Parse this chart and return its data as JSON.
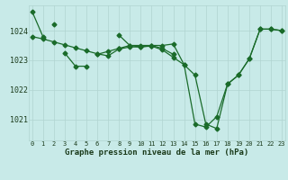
{
  "title": "Graphe pression niveau de la mer (hPa)",
  "background_color": "#c8eae8",
  "grid_color": "#b0d4d0",
  "line_color": "#1a6b2a",
  "series": [
    [
      1024.65,
      1023.8,
      null,
      1023.25,
      1022.8,
      1022.8,
      null,
      null,
      1023.4,
      1023.5,
      1023.5,
      1023.5,
      1023.4,
      1023.2,
      null,
      null,
      null,
      null,
      null,
      null,
      null,
      null,
      null,
      null
    ],
    [
      null,
      null,
      1024.2,
      null,
      null,
      null,
      1023.2,
      1023.3,
      1023.4,
      null,
      null,
      null,
      null,
      null,
      null,
      null,
      null,
      null,
      null,
      null,
      null,
      null,
      null,
      null
    ],
    [
      1023.8,
      1023.72,
      1023.62,
      1023.52,
      1023.42,
      1023.32,
      1023.22,
      1023.15,
      1023.38,
      1023.45,
      1023.45,
      1023.48,
      1023.35,
      1023.1,
      1022.85,
      1022.5,
      1020.85,
      1020.7,
      1022.2,
      1022.5,
      1023.05,
      1024.05,
      1024.05,
      1024.0
    ],
    [
      null,
      null,
      null,
      null,
      null,
      null,
      null,
      null,
      1023.85,
      1023.5,
      1023.45,
      1023.5,
      1023.5,
      1023.55,
      1022.85,
      1020.85,
      1020.75,
      1021.1,
      1022.2,
      1022.5,
      1023.05,
      1024.05,
      1024.05,
      1024.0
    ]
  ],
  "x_ticks": [
    0,
    1,
    2,
    3,
    4,
    5,
    6,
    7,
    8,
    9,
    10,
    11,
    12,
    13,
    14,
    15,
    16,
    17,
    18,
    19,
    20,
    21,
    22,
    23
  ],
  "y_ticks": [
    1021,
    1022,
    1023,
    1024
  ],
  "ylim": [
    1020.3,
    1024.85
  ],
  "xlim": [
    -0.3,
    23.3
  ]
}
